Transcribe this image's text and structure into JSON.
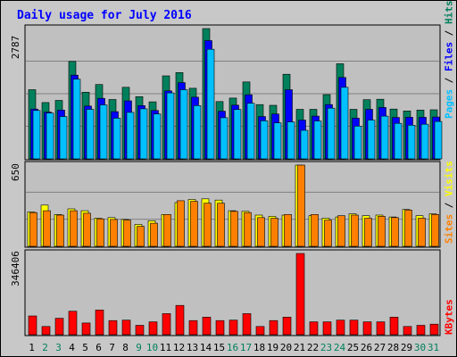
{
  "chart_data": {
    "type": "bar",
    "title": "Daily usage for July 2016",
    "categories": [
      "1",
      "2",
      "3",
      "4",
      "5",
      "6",
      "7",
      "8",
      "9",
      "10",
      "11",
      "12",
      "13",
      "14",
      "15",
      "16",
      "17",
      "18",
      "19",
      "20",
      "21",
      "22",
      "23",
      "24",
      "25",
      "26",
      "27",
      "28",
      "29",
      "30",
      "31"
    ],
    "weekend_days": [
      "2",
      "3",
      "9",
      "10",
      "16",
      "17",
      "23",
      "24",
      "30",
      "31"
    ],
    "panels": [
      {
        "key": "hits",
        "ylabel_parts": [
          "Pages",
          "Files",
          "Hits"
        ],
        "max_label": "2787",
        "ylim": [
          0,
          2787
        ],
        "series": [
          {
            "name": "Hits",
            "color": "#00805c",
            "values": [
              1480,
              1205,
              1250,
              2085,
              1425,
              1590,
              1270,
              1530,
              1330,
              1220,
              1775,
              1845,
              1510,
              2787,
              1225,
              1300,
              1645,
              1160,
              1145,
              1810,
              1060,
              1060,
              1375,
              2035,
              1060,
              1265,
              1275,
              1065,
              1025,
              1045,
              1050
            ]
          },
          {
            "name": "Files",
            "color": "#0000ff",
            "values": [
              1065,
              1000,
              1045,
              1790,
              1130,
              1295,
              1010,
              1240,
              1140,
              1035,
              1455,
              1630,
              1320,
              2530,
              1020,
              1150,
              1370,
              905,
              960,
              1480,
              830,
              915,
              1160,
              1740,
              870,
              1060,
              1100,
              885,
              890,
              890,
              895
            ]
          },
          {
            "name": "Pages",
            "color": "#00c0ff",
            "values": [
              1035,
              980,
              905,
              1705,
              1060,
              1155,
              870,
              995,
              1070,
              960,
              1410,
              1480,
              1140,
              2345,
              880,
              1055,
              1190,
              815,
              770,
              790,
              610,
              810,
              1085,
              1530,
              700,
              830,
              915,
              760,
              720,
              740,
              800
            ]
          }
        ]
      },
      {
        "key": "visits",
        "ylabel_parts": [
          "Sites",
          "Visits"
        ],
        "max_label": "650",
        "ylim": [
          0,
          650
        ],
        "series": [
          {
            "name": "Visits",
            "color": "#ffff00",
            "values": [
              275,
              330,
              255,
              300,
              285,
              225,
              230,
              215,
              175,
              205,
              255,
              350,
              375,
              380,
              370,
              285,
              280,
              250,
              240,
              250,
              650,
              245,
              225,
              235,
              260,
              245,
              250,
              235,
              295,
              245,
              260
            ]
          },
          {
            "name": "Sites",
            "color": "#ff8000",
            "values": [
              270,
              285,
              250,
              285,
              265,
              220,
              215,
              210,
              160,
              185,
              255,
              365,
              360,
              345,
              345,
              280,
              270,
              230,
              225,
              255,
              650,
              255,
              210,
              245,
              250,
              225,
              240,
              230,
              290,
              225,
              255
            ]
          }
        ]
      },
      {
        "key": "kbytes",
        "ylabel_parts": [
          "KBytes"
        ],
        "max_label": "346406",
        "ylim": [
          0,
          346406
        ],
        "series": [
          {
            "name": "KBytes",
            "color": "#ff0000",
            "values": [
              80000,
              35000,
              70000,
              100000,
              50000,
              105000,
              60000,
              62000,
              40000,
              55000,
              90000,
              125000,
              60000,
              75000,
              60000,
              62000,
              90000,
              35000,
              60000,
              75000,
              346406,
              55000,
              55000,
              62000,
              62000,
              55000,
              55000,
              75000,
              35000,
              40000,
              45000
            ]
          }
        ]
      }
    ],
    "colors": {
      "background": "#c8c8c8",
      "plot_background": "#c0c0c0",
      "title": "#0000ff",
      "gridline": "#808080",
      "weekday_label": "#000000",
      "weekend_label": "#00805c",
      "axis_label": "#000000"
    }
  }
}
